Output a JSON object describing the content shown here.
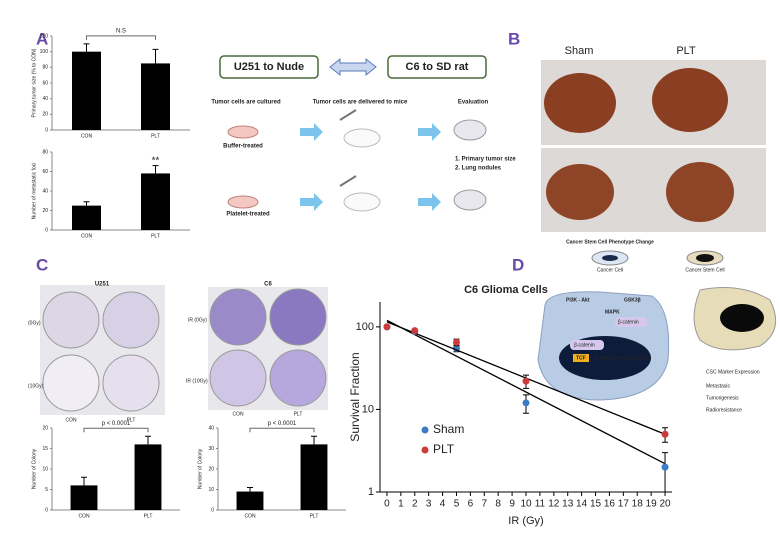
{
  "panel_labels": {
    "a": "A",
    "b": "B",
    "c": "C",
    "d": "D"
  },
  "schematic": {
    "model1": "U251 to Nude",
    "model2": "C6 to SD rat",
    "step1": "Tumor cells are cultured",
    "step2": "Tumor cells are delivered to mice",
    "step3": "Evaluation",
    "buffer": "Buffer-treated",
    "platelet": "Platelet-treated",
    "eval1": "1. Primary tumor size",
    "eval2": "2. Lung nodules"
  },
  "lungs": {
    "sham": "Sham",
    "plt": "PLT"
  },
  "colony": {
    "u251": {
      "title": "U251",
      "dose0": "(0Gy)",
      "dose10": "(10Gy)",
      "con": "CON",
      "plt": "PLT"
    },
    "c6": {
      "title": "C6",
      "dose0": "IR (0Gy)",
      "dose10": "IR (10Gy)",
      "con": "CON",
      "plt": "PLT"
    }
  },
  "pathway": {
    "title": "Cancer Stem Cell Phenotype Change",
    "cell1": "Cancer Cell",
    "cell2": "Cancer Stem Cell",
    "mapk": "MAPK",
    "pi3k": "PI3K - Akt",
    "gsk": "GSK3β",
    "bcat1": "β-catenin",
    "bcat2": "β-catenin",
    "tcf": "TCF",
    "target": "Target Gene Expression",
    "out1": "CSC Marker Expression",
    "out2": "Metastasis",
    "out3": "Tumorigenesis",
    "out4": "Radioresistance"
  },
  "chart_data": [
    {
      "type": "bar",
      "y_label": "Primary tumor size (% to CON)",
      "annotation": "N.S",
      "color": "#000000",
      "categories": [
        "CON",
        "PLT"
      ],
      "values": [
        100,
        85
      ],
      "errors": [
        10,
        18
      ],
      "ylim": [
        0,
        120
      ],
      "yticks": [
        0,
        20,
        40,
        60,
        80,
        100,
        120
      ]
    },
    {
      "type": "bar",
      "y_label": "Number of metastatic foci",
      "annotation": "**",
      "color": "#000000",
      "categories": [
        "CON",
        "PLT"
      ],
      "values": [
        25,
        58
      ],
      "errors": [
        4,
        8
      ],
      "ylim": [
        0,
        80
      ],
      "yticks": [
        0,
        20,
        40,
        60,
        80
      ]
    },
    {
      "type": "bar",
      "y_label": "Number of Colony",
      "annotation": "p < 0.0001",
      "color": "#000000",
      "categories": [
        "CON",
        "PLT"
      ],
      "values": [
        6,
        16
      ],
      "errors": [
        2,
        2
      ],
      "ylim": [
        0,
        20
      ],
      "yticks": [
        0,
        5,
        10,
        15,
        20
      ]
    },
    {
      "type": "bar",
      "y_label": "Number of Colony",
      "annotation": "p < 0.0001",
      "color": "#000000",
      "categories": [
        "CON",
        "PLT"
      ],
      "values": [
        9,
        32
      ],
      "errors": [
        2,
        4
      ],
      "ylim": [
        0,
        40
      ],
      "yticks": [
        0,
        10,
        20,
        30,
        40
      ]
    },
    {
      "type": "scatter",
      "title": "C6 Glioma Cells",
      "x_label": "IR (Gy)",
      "y_label": "Survival Fraction",
      "log_y": true,
      "legend": "lower left",
      "x": [
        0,
        2,
        5,
        10,
        20
      ],
      "series": [
        {
          "name": "Sham",
          "color": "#3c7cc4",
          "values": [
            100,
            88,
            55,
            12,
            2
          ],
          "errors": [
            0,
            0,
            5,
            3,
            1
          ],
          "fit": {
            "x": [
              0,
              20
            ],
            "values": [
              120,
              2.2
            ]
          }
        },
        {
          "name": "PLT",
          "color": "#cc3b3b",
          "values": [
            100,
            90,
            65,
            22,
            5
          ],
          "errors": [
            0,
            0,
            6,
            4,
            1
          ],
          "fit": {
            "x": [
              0,
              20
            ],
            "values": [
              115,
              5
            ]
          }
        }
      ],
      "xlim": [
        -0.5,
        20.5
      ],
      "xticks": [
        0,
        1,
        2,
        3,
        4,
        5,
        6,
        7,
        8,
        9,
        10,
        11,
        12,
        13,
        14,
        15,
        16,
        17,
        18,
        19,
        20
      ],
      "ylim": [
        1,
        200
      ],
      "yticks": [
        1,
        10,
        100
      ]
    }
  ]
}
